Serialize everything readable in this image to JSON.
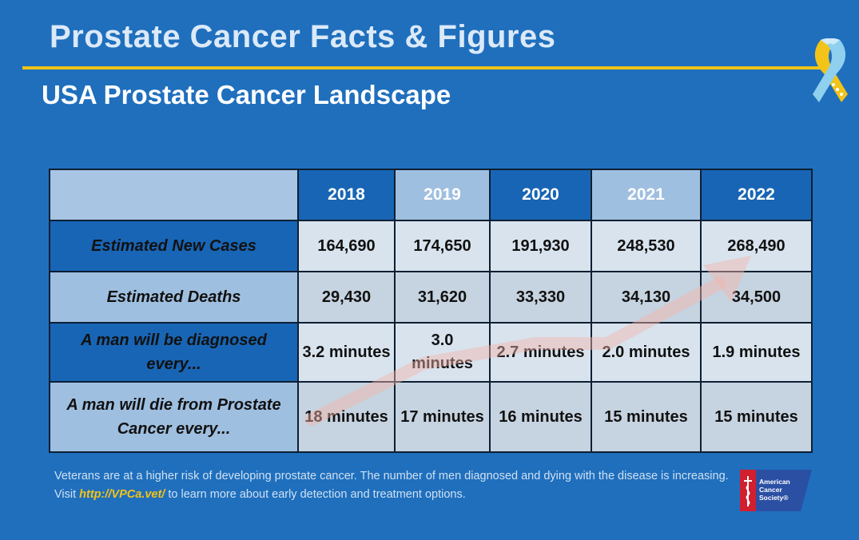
{
  "header": {
    "title": "Prostate Cancer Facts & Figures",
    "subtitle": "USA Prostate Cancer Landscape"
  },
  "table": {
    "years": [
      "2018",
      "2019",
      "2020",
      "2021",
      "2022"
    ],
    "rows": [
      {
        "label": "Estimated New Cases",
        "values": [
          "164,690",
          "174,650",
          "191,930",
          "248,530",
          "268,490"
        ]
      },
      {
        "label": "Estimated Deaths",
        "values": [
          "29,430",
          "31,620",
          "33,330",
          "34,130",
          "34,500"
        ]
      },
      {
        "label": "A man will be diagnosed every...",
        "values": [
          "3.2 minutes",
          "3.0 minutes",
          "2.7 minutes",
          "2.0 minutes",
          "1.9 minutes"
        ]
      },
      {
        "label": "A man will die from Prostate Cancer every...",
        "values": [
          "18 minutes",
          "17 minutes",
          "16 minutes",
          "15 minutes",
          "15 minutes"
        ]
      }
    ]
  },
  "footnote": {
    "text_before": "Veterans are at a higher risk of developing prostate cancer. The number of men diagnosed and dying with the disease is increasing. Visit ",
    "link": "http://VPCa.vet/",
    "text_after": " to learn more about early detection and treatment options."
  },
  "logo": {
    "line1": "American",
    "line2": "Cancer",
    "line3": "Society®"
  },
  "colors": {
    "background": "#1f6fbd",
    "accent_yellow": "#f2c318",
    "header_dark": "#1865b5",
    "header_light": "#9fbfe0"
  },
  "icons": [
    "awareness-ribbon-icon",
    "upward-trend-arrow-icon",
    "american-cancer-society-logo"
  ]
}
